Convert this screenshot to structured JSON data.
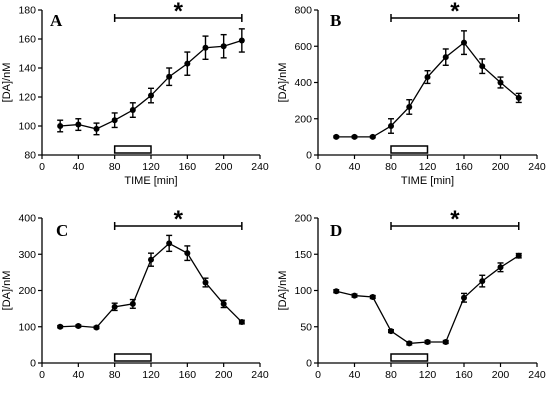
{
  "chart_data": [
    {
      "type": "line",
      "panel_label": "A",
      "xlabel": "TIME [min]",
      "ylabel": "[DA]/nM",
      "xlim": [
        0,
        240
      ],
      "ylim": [
        80,
        180
      ],
      "xticks": [
        0,
        40,
        80,
        120,
        160,
        200,
        240
      ],
      "yticks": [
        80,
        100,
        120,
        140,
        160,
        180
      ],
      "x": [
        20,
        40,
        60,
        80,
        100,
        120,
        140,
        160,
        180,
        200,
        220
      ],
      "values": [
        100,
        101,
        98,
        104,
        111,
        121,
        134,
        143,
        154,
        155,
        159
      ],
      "errors": [
        4,
        4,
        4,
        5,
        5,
        5,
        6,
        8,
        8,
        8,
        8
      ],
      "significance": {
        "label": "*",
        "from": 80,
        "to": 220
      },
      "stimulus": {
        "from": 80,
        "to": 120
      }
    },
    {
      "type": "line",
      "panel_label": "B",
      "xlabel": "TIME [min]",
      "ylabel": "[DA]/nM",
      "xlim": [
        0,
        240
      ],
      "ylim": [
        0,
        800
      ],
      "xticks": [
        0,
        40,
        80,
        120,
        160,
        200,
        240
      ],
      "yticks": [
        0,
        200,
        400,
        600,
        800
      ],
      "x": [
        20,
        40,
        60,
        80,
        100,
        120,
        140,
        160,
        180,
        200,
        220
      ],
      "values": [
        100,
        100,
        100,
        160,
        265,
        430,
        540,
        620,
        490,
        400,
        315
      ],
      "errors": [
        5,
        5,
        5,
        40,
        40,
        35,
        45,
        65,
        40,
        30,
        25
      ],
      "significance": {
        "label": "*",
        "from": 80,
        "to": 220
      },
      "stimulus": {
        "from": 80,
        "to": 120
      }
    },
    {
      "type": "line",
      "panel_label": "C",
      "xlabel": "",
      "ylabel": "[DA]/nM",
      "xlim": [
        0,
        240
      ],
      "ylim": [
        0,
        400
      ],
      "xticks": [
        0,
        40,
        80,
        120,
        160,
        200,
        240
      ],
      "yticks": [
        0,
        100,
        200,
        300,
        400
      ],
      "x": [
        20,
        40,
        60,
        80,
        100,
        120,
        140,
        160,
        180,
        200,
        220
      ],
      "values": [
        100,
        102,
        98,
        155,
        163,
        285,
        330,
        303,
        222,
        163,
        113
      ],
      "errors": [
        3,
        3,
        3,
        10,
        12,
        18,
        22,
        20,
        12,
        10,
        5
      ],
      "significance": {
        "label": "*",
        "from": 80,
        "to": 220
      },
      "stimulus": {
        "from": 80,
        "to": 120
      }
    },
    {
      "type": "line",
      "panel_label": "D",
      "xlabel": "",
      "ylabel": "[DA]/nM",
      "xlim": [
        0,
        240
      ],
      "ylim": [
        0,
        200
      ],
      "xticks": [
        0,
        40,
        80,
        120,
        160,
        200,
        240
      ],
      "yticks": [
        0,
        50,
        100,
        150,
        200
      ],
      "x": [
        20,
        40,
        60,
        80,
        100,
        120,
        140,
        160,
        180,
        200,
        220
      ],
      "values": [
        99,
        93,
        91,
        44,
        27,
        29,
        29,
        90,
        113,
        132,
        148
      ],
      "errors": [
        2,
        2,
        2,
        2,
        2,
        2,
        2,
        6,
        8,
        6,
        3
      ],
      "significance": {
        "label": "*",
        "from": 80,
        "to": 220
      },
      "stimulus": {
        "from": 80,
        "to": 120
      }
    }
  ]
}
